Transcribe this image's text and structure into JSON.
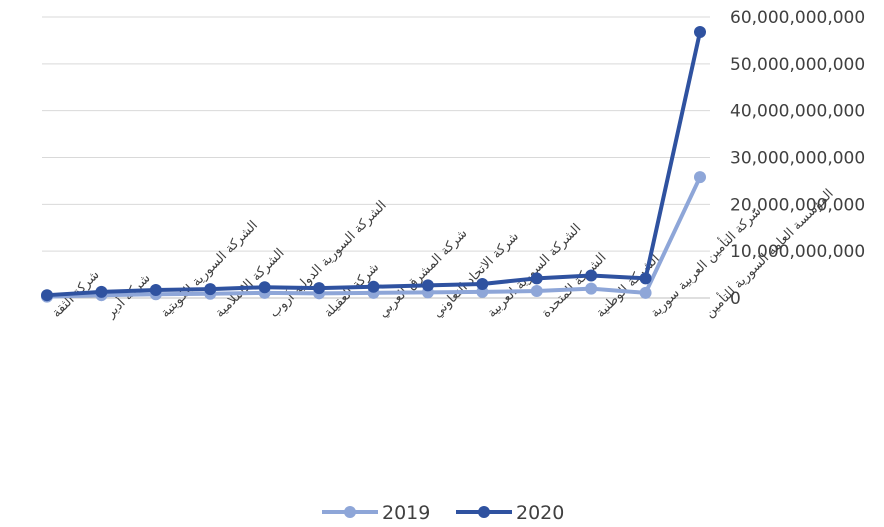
{
  "chart_data": {
    "type": "line",
    "title": "",
    "xlabel": "",
    "ylabel": "",
    "ylim": [
      0,
      60000000000
    ],
    "yticks": [
      "0",
      "10,000,000,000",
      "20,000,000,000",
      "30,000,000,000",
      "40,000,000,000",
      "50,000,000,000",
      "60,000,000,000"
    ],
    "y_axis_side": "right",
    "grid": true,
    "legend_position": "bottom",
    "categories": [
      "شركة الثقة",
      "شركة أدير",
      "الشركة السورية الكويتية",
      "الشركة الإسلامية",
      "الشركة السورية الدولية آروب",
      "شركة العقيلة",
      "شركة المشرق العربي",
      "شركة الاتحاد التعاوني",
      "الشركة السورية العربية",
      "الشركة المتحدة",
      "الشركة الوطنية",
      "شركة التأمين العربية سورية",
      "المؤسسة العامة السورية للتأمين"
    ],
    "series": [
      {
        "name": "2019",
        "color": "#8EA6D8",
        "values": [
          300000000,
          600000000,
          800000000,
          900000000,
          1100000000,
          1000000000,
          1100000000,
          1200000000,
          1300000000,
          1500000000,
          2000000000,
          1100000000,
          25800000000
        ]
      },
      {
        "name": "2020",
        "color": "#2F52A0",
        "values": [
          600000000,
          1300000000,
          1700000000,
          1900000000,
          2300000000,
          2100000000,
          2400000000,
          2700000000,
          3000000000,
          4200000000,
          4800000000,
          4200000000,
          56800000000
        ]
      }
    ]
  }
}
